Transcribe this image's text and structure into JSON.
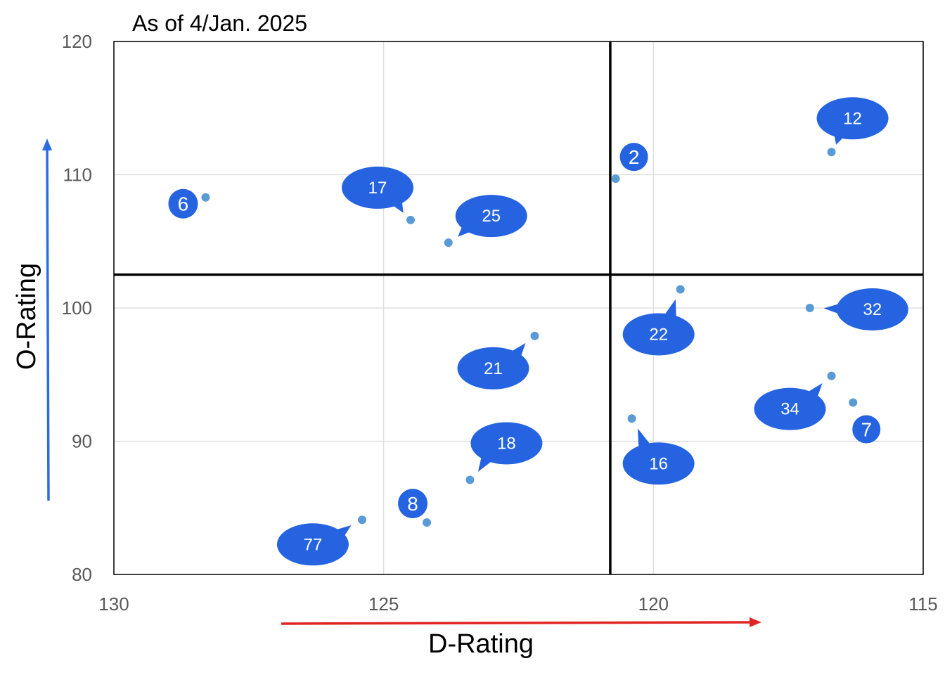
{
  "chart_data": {
    "type": "scatter",
    "title": "As of 4/Jan. 2025",
    "xlabel": "D-Rating",
    "ylabel": "O-Rating",
    "xlim": [
      130,
      115
    ],
    "x_reversed": true,
    "ylim": [
      80,
      120
    ],
    "xticks": [
      "130",
      "125",
      "120",
      "115"
    ],
    "yticks": [
      "80",
      "90",
      "100",
      "110",
      "120"
    ],
    "grid": true,
    "quadrant_lines": {
      "x": 120.8,
      "y": 102.5
    },
    "point_color": "#5b9bd5",
    "label_color": "#2563e0",
    "points": [
      {
        "label": "6",
        "x": 128.3,
        "y": 108.3,
        "callout": "circle"
      },
      {
        "label": "17",
        "x": 124.5,
        "y": 106.6,
        "callout": "bubble"
      },
      {
        "label": "25",
        "x": 123.8,
        "y": 104.9,
        "callout": "bubble"
      },
      {
        "label": "2",
        "x": 120.7,
        "y": 109.7,
        "callout": "circle"
      },
      {
        "label": "12",
        "x": 116.7,
        "y": 111.7,
        "callout": "bubble"
      },
      {
        "label": "22",
        "x": 119.5,
        "y": 101.4,
        "callout": "bubble"
      },
      {
        "label": "32",
        "x": 117.1,
        "y": 100.0,
        "callout": "bubble"
      },
      {
        "label": "21",
        "x": 122.2,
        "y": 97.9,
        "callout": "bubble"
      },
      {
        "label": "34",
        "x": 116.7,
        "y": 94.9,
        "callout": "bubble"
      },
      {
        "label": "7",
        "x": 116.3,
        "y": 92.9,
        "callout": "circle"
      },
      {
        "label": "16",
        "x": 120.4,
        "y": 91.7,
        "callout": "bubble"
      },
      {
        "label": "18",
        "x": 123.4,
        "y": 87.1,
        "callout": "bubble"
      },
      {
        "label": "8",
        "x": 124.2,
        "y": 83.9,
        "callout": "circle"
      },
      {
        "label": "77",
        "x": 125.4,
        "y": 84.1,
        "callout": "bubble"
      }
    ]
  }
}
